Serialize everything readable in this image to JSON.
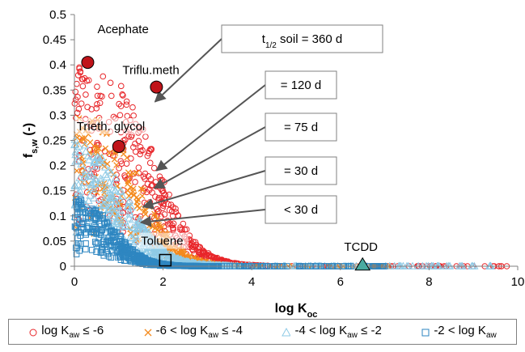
{
  "chart_data": {
    "type": "scatter",
    "xlabel": "log K",
    "xlabel_sub": "oc",
    "ylabel": "f",
    "ylabel_sub": "s,w",
    "ylabel_suffix": " (-)",
    "xlim": [
      0,
      10
    ],
    "ylim": [
      0,
      0.5
    ],
    "x_ticks": [
      "0",
      "2",
      "4",
      "6",
      "8",
      "10"
    ],
    "y_ticks": [
      "0",
      "0.05",
      "0.1",
      "0.15",
      "0.2",
      "0.25",
      "0.3",
      "0.35",
      "0.4",
      "0.45",
      "0.5"
    ],
    "grid": false,
    "legend_position": "bottom",
    "series": [
      {
        "name": "log Kaw ≤ -6",
        "color": "#e8262a",
        "marker": "circle",
        "seed": {
          "y0": 0.4,
          "xh": 1.9,
          "w": 0.42,
          "xmax": 9.9
        }
      },
      {
        "name": "-6 < log Kaw ≤ -4",
        "color": "#f48b1e",
        "marker": "x",
        "seed": {
          "y0": 0.31,
          "xh": 1.55,
          "w": 0.4,
          "xmax": 7.3
        }
      },
      {
        "name": "-4 < log Kaw ≤ -2",
        "color": "#8ecae6",
        "marker": "triangle",
        "seed": {
          "y0": 0.26,
          "xh": 1.25,
          "w": 0.4,
          "xmax": 9.5
        }
      },
      {
        "name": "-2 < log Kaw",
        "color": "#2e86c1",
        "marker": "square",
        "seed": {
          "y0": 0.14,
          "xh": 0.95,
          "w": 0.32,
          "xmax": 7.0
        }
      }
    ],
    "highlight_points": [
      {
        "label": "Acephate",
        "x": 0.3,
        "y": 0.405,
        "marker": "circle",
        "fill": "#c0141a"
      },
      {
        "label": "Triflu.meth",
        "x": 1.85,
        "y": 0.356,
        "marker": "circle",
        "fill": "#c0141a"
      },
      {
        "label": "Trieth. glycol",
        "x": 1.0,
        "y": 0.238,
        "marker": "circle",
        "fill": "#c0141a"
      },
      {
        "label": "Toluene",
        "x": 2.05,
        "y": 0.012,
        "marker": "square",
        "fill": "none"
      },
      {
        "label": "TCDD",
        "x": 6.5,
        "y": 0.002,
        "marker": "triangle",
        "fill": "#4aaba0"
      }
    ],
    "callouts": [
      {
        "text": "soil = 360 d",
        "prefix": "t",
        "prefix_sub": "1/2",
        "tip_x": 1.82,
        "tip_y": 0.327
      },
      {
        "text": "= 120 d",
        "tip_x": 1.85,
        "tip_y": 0.19
      },
      {
        "text": "= 75 d",
        "tip_x": 1.8,
        "tip_y": 0.155
      },
      {
        "text": "= 30 d",
        "tip_x": 1.55,
        "tip_y": 0.118
      },
      {
        "text": "< 30 d",
        "tip_x": 1.5,
        "tip_y": 0.087
      }
    ],
    "legend": [
      {
        "pre": "log K",
        "sub": "aw",
        "post": " ≤ -6"
      },
      {
        "pre": "-6 < log K",
        "sub": "aw",
        "post": " ≤ -4"
      },
      {
        "pre": "-4 < log K",
        "sub": "aw",
        "post": " ≤ -2"
      },
      {
        "pre": "-2 < log K",
        "sub": "aw",
        "post": ""
      }
    ]
  }
}
